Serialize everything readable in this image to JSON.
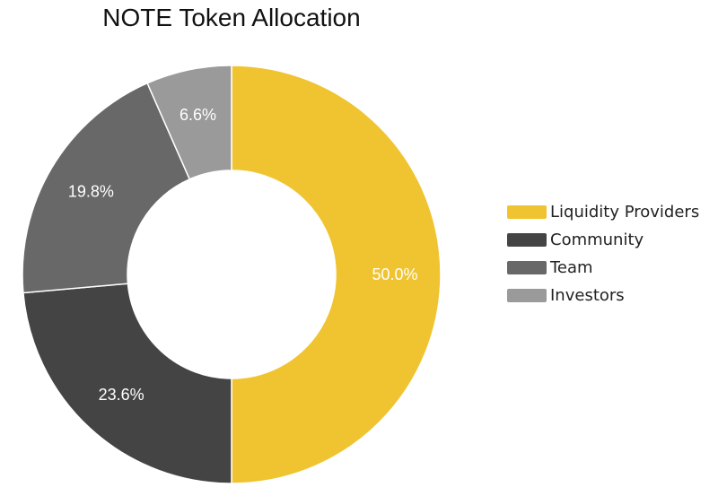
{
  "chart_data": {
    "type": "pie",
    "variant": "donut",
    "title": "NOTE Token Allocation",
    "categories": [
      "Liquidity Providers",
      "Community",
      "Team",
      "Investors"
    ],
    "values": [
      50.0,
      23.6,
      19.8,
      6.6
    ],
    "value_labels": [
      "50.0%",
      "23.6%",
      "19.8%",
      "6.6%"
    ],
    "colors": [
      "#f0c431",
      "#444444",
      "#686868",
      "#9a9a9a"
    ],
    "legend": "right"
  }
}
